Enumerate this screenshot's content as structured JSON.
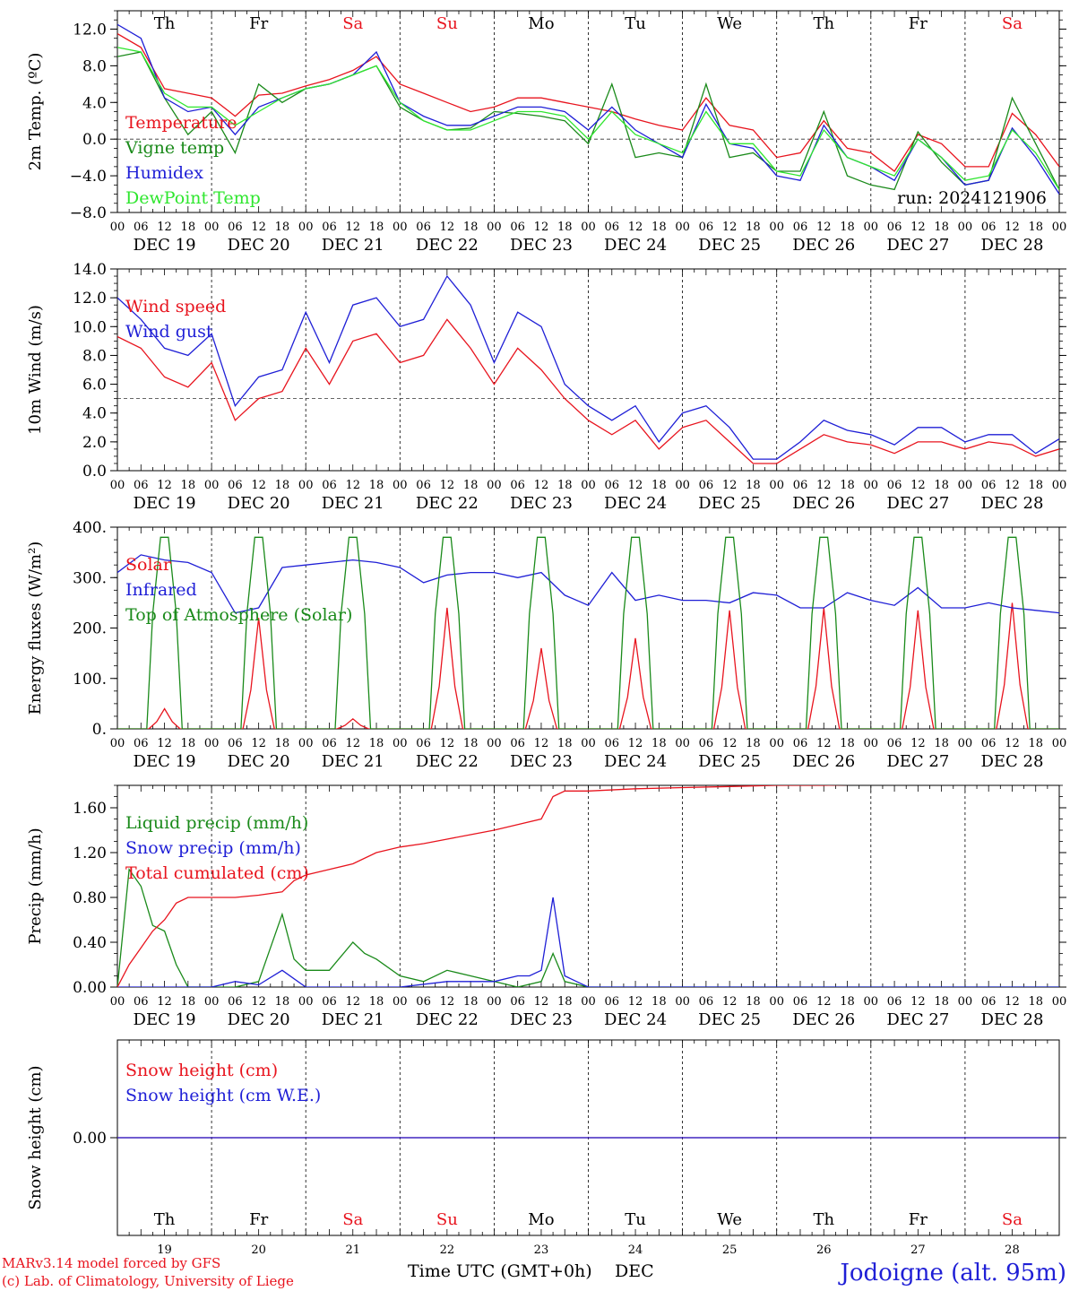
{
  "title": "",
  "run_label": "run: 2024121906",
  "footer": {
    "credit_line1": "MARv3.14 model forced by GFS",
    "credit_line2": "(c) Lab. of Climatology, University of Liege",
    "xaxis_title": "Time UTC (GMT+0h)",
    "month_label": "DEC",
    "station": "Jodoigne (alt. 95m)"
  },
  "days": {
    "names": [
      "Th",
      "Fr",
      "Sa",
      "Su",
      "Mo",
      "Tu",
      "We",
      "Th",
      "Fr",
      "Sa"
    ],
    "weekend": [
      false,
      false,
      true,
      true,
      false,
      false,
      false,
      false,
      false,
      true
    ],
    "dates": [
      "DEC 19",
      "DEC 20",
      "DEC 21",
      "DEC 22",
      "DEC 23",
      "DEC 24",
      "DEC 25",
      "DEC 26",
      "DEC 27",
      "DEC 28"
    ],
    "numbers": [
      "19",
      "20",
      "21",
      "22",
      "23",
      "24",
      "25",
      "26",
      "27",
      "28"
    ],
    "hour_ticks": [
      "00",
      "06",
      "12",
      "18"
    ],
    "final_tick": "00"
  },
  "colors": {
    "red": "#e8141e",
    "green": "#1a8a1a",
    "blue": "#1f1fd6",
    "lightgreen": "#2ee62e",
    "axis": "#000000",
    "weekend_text": "#e8141e"
  },
  "chart_data": [
    {
      "type": "line",
      "ylabel": "2m Temp. (ºC)",
      "ylim": [
        -8,
        14
      ],
      "yticks": [
        "12.0",
        "8.0",
        "4.0",
        "0.0",
        "−4.0",
        "−8.0"
      ],
      "ytick_values": [
        12,
        8,
        4,
        0,
        -4,
        -8
      ],
      "reference_line": 0,
      "x_hours": [
        0,
        6,
        12,
        18,
        24,
        30,
        36,
        42,
        48,
        54,
        60,
        66,
        72,
        78,
        84,
        90,
        96,
        102,
        108,
        114,
        120,
        126,
        132,
        138,
        144,
        150,
        156,
        162,
        168,
        174,
        180,
        186,
        192,
        198,
        204,
        210,
        216,
        222,
        228,
        234,
        240
      ],
      "series": [
        {
          "name": "Temperature",
          "color": "red",
          "values": [
            11.5,
            10.0,
            5.5,
            5.0,
            4.5,
            2.5,
            4.8,
            5.0,
            5.8,
            6.5,
            7.5,
            9.0,
            6.0,
            5.0,
            4.0,
            3.0,
            3.5,
            4.5,
            4.5,
            4.0,
            3.5,
            3.0,
            2.2,
            1.5,
            1.0,
            4.5,
            1.5,
            1.0,
            -2.0,
            -1.5,
            2.0,
            -1.0,
            -1.5,
            -3.5,
            0.5,
            -0.5,
            -3.0,
            -3.0,
            2.8,
            0.5,
            -3.0
          ]
        },
        {
          "name": "Vigne temp",
          "color": "green",
          "values": [
            9.0,
            9.5,
            4.5,
            0.5,
            3.0,
            -1.5,
            6.0,
            4.0,
            5.5,
            6.0,
            7.0,
            8.0,
            3.5,
            2.0,
            1.0,
            1.2,
            3.0,
            2.8,
            2.5,
            2.0,
            -0.5,
            6.0,
            -2.0,
            -1.5,
            -2.0,
            6.0,
            -2.0,
            -1.5,
            -3.5,
            -3.5,
            3.0,
            -4.0,
            -5.0,
            -5.5,
            0.8,
            -2.5,
            -5.0,
            -4.5,
            4.5,
            -0.5,
            -5.5
          ]
        },
        {
          "name": "Humidex",
          "color": "blue",
          "values": [
            12.5,
            11.0,
            4.5,
            3.0,
            3.5,
            0.5,
            3.5,
            4.5,
            5.5,
            6.0,
            7.0,
            9.5,
            4.0,
            2.5,
            1.5,
            1.5,
            2.5,
            3.5,
            3.5,
            3.0,
            1.0,
            3.5,
            1.0,
            -0.5,
            -2.0,
            3.8,
            -0.5,
            -1.0,
            -4.0,
            -4.5,
            1.5,
            -2.0,
            -3.0,
            -4.5,
            0.0,
            -2.0,
            -5.0,
            -4.5,
            1.2,
            -2.0,
            -6.0
          ]
        },
        {
          "name": "DewPoint Temp",
          "color": "lightgreen",
          "values": [
            10.0,
            9.5,
            5.0,
            3.5,
            3.5,
            1.5,
            3.0,
            4.5,
            5.5,
            6.0,
            7.0,
            8.0,
            4.0,
            2.0,
            1.0,
            1.0,
            2.0,
            3.0,
            3.0,
            2.5,
            0.0,
            3.0,
            0.5,
            -0.5,
            -1.5,
            3.0,
            -0.5,
            -0.5,
            -3.5,
            -4.0,
            1.0,
            -2.0,
            -3.0,
            -4.0,
            0.0,
            -2.0,
            -4.5,
            -4.0,
            1.0,
            -1.5,
            -5.5
          ]
        }
      ]
    },
    {
      "type": "line",
      "ylabel": "10m Wind (m/s)",
      "ylim": [
        0,
        14
      ],
      "yticks": [
        "14.0",
        "12.0",
        "10.0",
        "8.0",
        "6.0",
        "4.0",
        "2.0",
        "0.0"
      ],
      "ytick_values": [
        14,
        12,
        10,
        8,
        6,
        4,
        2,
        0
      ],
      "reference_line": 5,
      "x_hours": [
        0,
        6,
        12,
        18,
        24,
        30,
        36,
        42,
        48,
        54,
        60,
        66,
        72,
        78,
        84,
        90,
        96,
        102,
        108,
        114,
        120,
        126,
        132,
        138,
        144,
        150,
        156,
        162,
        168,
        174,
        180,
        186,
        192,
        198,
        204,
        210,
        216,
        222,
        228,
        234,
        240
      ],
      "series": [
        {
          "name": "Wind speed",
          "color": "red",
          "values": [
            9.3,
            8.5,
            6.5,
            5.8,
            7.5,
            3.5,
            5.0,
            5.5,
            8.5,
            6.0,
            9.0,
            9.5,
            7.5,
            8.0,
            10.5,
            8.5,
            6.0,
            8.5,
            7.0,
            5.0,
            3.5,
            2.5,
            3.5,
            1.5,
            3.0,
            3.5,
            2.0,
            0.5,
            0.5,
            1.5,
            2.5,
            2.0,
            1.8,
            1.2,
            2.0,
            2.0,
            1.5,
            2.0,
            1.8,
            1.0,
            1.5
          ]
        },
        {
          "name": "Wind gust",
          "color": "blue",
          "values": [
            12.0,
            10.5,
            8.5,
            8.0,
            9.5,
            4.5,
            6.5,
            7.0,
            11.0,
            7.5,
            11.5,
            12.0,
            10.0,
            10.5,
            13.5,
            11.5,
            7.5,
            11.0,
            10.0,
            6.0,
            4.5,
            3.5,
            4.5,
            2.0,
            4.0,
            4.5,
            3.0,
            0.8,
            0.8,
            2.0,
            3.5,
            2.8,
            2.5,
            1.8,
            3.0,
            3.0,
            2.0,
            2.5,
            2.5,
            1.2,
            2.2
          ]
        }
      ]
    },
    {
      "type": "line",
      "ylabel": "Energy fluxes (W/m²)",
      "ylim": [
        0,
        400
      ],
      "yticks": [
        "400.",
        "300.",
        "200.",
        "100.",
        "0."
      ],
      "ytick_values": [
        400,
        300,
        200,
        100,
        0
      ],
      "series": [
        {
          "name": "Solar",
          "color": "red",
          "peaks": [
            [
              0,
              40
            ],
            [
              1,
              220
            ],
            [
              2,
              20
            ],
            [
              3,
              240
            ],
            [
              4,
              160
            ],
            [
              5,
              180
            ],
            [
              6,
              235
            ],
            [
              7,
              240
            ],
            [
              8,
              235
            ],
            [
              9,
              250
            ]
          ]
        },
        {
          "name": "Infrared",
          "color": "blue",
          "x_hours": [
            0,
            6,
            12,
            18,
            24,
            30,
            36,
            42,
            48,
            54,
            60,
            66,
            72,
            78,
            84,
            90,
            96,
            102,
            108,
            114,
            120,
            126,
            132,
            138,
            144,
            150,
            156,
            162,
            168,
            174,
            180,
            186,
            192,
            198,
            204,
            210,
            216,
            222,
            228,
            234,
            240
          ],
          "values": [
            310,
            345,
            335,
            330,
            310,
            230,
            240,
            320,
            325,
            330,
            335,
            330,
            320,
            290,
            305,
            310,
            310,
            300,
            310,
            265,
            245,
            310,
            255,
            265,
            255,
            255,
            250,
            270,
            265,
            240,
            240,
            270,
            255,
            245,
            280,
            240,
            240,
            250,
            240,
            235,
            230
          ]
        },
        {
          "name": "Top of Atmosphere (Solar)",
          "color": "green",
          "peak": 380
        }
      ]
    },
    {
      "type": "line",
      "ylabel": "Precip (mm/h)",
      "ylim": [
        0,
        1.8
      ],
      "yticks": [
        "1.60",
        "1.20",
        "0.80",
        "0.40",
        "0.00"
      ],
      "ytick_values": [
        1.6,
        1.2,
        0.8,
        0.4,
        0.0
      ],
      "series": [
        {
          "name": "Liquid precip (mm/h)",
          "color": "green",
          "x_hours": [
            0,
            3,
            6,
            9,
            12,
            15,
            18,
            21,
            24,
            30,
            36,
            42,
            45,
            48,
            54,
            60,
            63,
            66,
            72,
            78,
            84,
            90,
            96,
            102,
            108,
            111,
            114,
            120,
            126,
            132,
            138,
            144,
            150,
            156,
            162,
            168,
            174,
            180,
            186,
            192,
            198,
            204,
            210,
            216,
            222,
            228,
            234,
            240
          ],
          "values": [
            0,
            1.05,
            0.9,
            0.55,
            0.5,
            0.2,
            0,
            0,
            0,
            0,
            0.05,
            0.65,
            0.25,
            0.15,
            0.15,
            0.4,
            0.3,
            0.25,
            0.1,
            0.05,
            0.15,
            0.1,
            0.05,
            0,
            0.05,
            0.3,
            0.05,
            0,
            0,
            0,
            0,
            0,
            0,
            0,
            0,
            0,
            0,
            0,
            0,
            0,
            0,
            0,
            0,
            0,
            0,
            0,
            0,
            0
          ]
        },
        {
          "name": "Snow precip (mm/h)",
          "color": "blue",
          "x_hours": [
            0,
            24,
            30,
            36,
            42,
            48,
            60,
            72,
            84,
            96,
            102,
            105,
            108,
            111,
            114,
            117,
            120,
            240
          ],
          "values": [
            0,
            0,
            0.05,
            0.02,
            0.15,
            0,
            0,
            0,
            0.05,
            0.05,
            0.1,
            0.1,
            0.15,
            0.8,
            0.1,
            0.05,
            0,
            0
          ]
        },
        {
          "name": "Total cumulated (cm)",
          "color": "red",
          "x_hours": [
            0,
            3,
            6,
            9,
            12,
            15,
            18,
            24,
            30,
            36,
            42,
            45,
            48,
            54,
            60,
            66,
            72,
            78,
            84,
            90,
            96,
            102,
            108,
            111,
            114,
            120,
            132,
            144,
            156,
            168,
            180,
            192,
            204,
            216,
            228,
            240
          ],
          "values": [
            0,
            0.2,
            0.35,
            0.5,
            0.6,
            0.75,
            0.8,
            0.8,
            0.8,
            0.82,
            0.85,
            0.95,
            1.0,
            1.05,
            1.1,
            1.2,
            1.25,
            1.28,
            1.32,
            1.36,
            1.4,
            1.45,
            1.5,
            1.7,
            1.75,
            1.75,
            1.77,
            1.78,
            1.79,
            1.8,
            1.8,
            1.81,
            1.81,
            1.82,
            1.82,
            1.82
          ]
        }
      ]
    },
    {
      "type": "line",
      "ylabel": "Snow height (cm)",
      "ylim": [
        -1,
        1
      ],
      "yticks": [
        "0.00"
      ],
      "ytick_values": [
        0
      ],
      "series": [
        {
          "name": "Snow height (cm)",
          "color": "red",
          "x_hours": [
            0,
            240
          ],
          "values": [
            0,
            0
          ]
        },
        {
          "name": "Snow height (cm W.E.)",
          "color": "blue",
          "x_hours": [
            0,
            240
          ],
          "values": [
            0,
            0
          ]
        }
      ]
    }
  ]
}
